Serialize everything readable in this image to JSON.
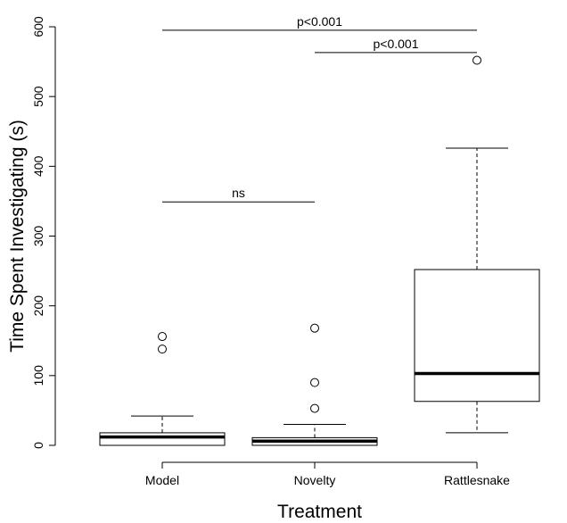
{
  "chart_data": {
    "type": "boxplot",
    "xlabel": "Treatment",
    "ylabel": "Time Spent Investigating (s)",
    "ylim": [
      -18,
      630
    ],
    "yticks": [
      0,
      100,
      200,
      300,
      400,
      500,
      600
    ],
    "ytick_labels": [
      "0",
      "100",
      "200",
      "300",
      "400",
      "500",
      "600"
    ],
    "categories": [
      "Model",
      "Novelty",
      "Rattlesnake"
    ],
    "boxes": [
      {
        "category": "Model",
        "whisker_low": 0,
        "q1": 0,
        "median": 12,
        "q3": 18,
        "whisker_high": 42,
        "outliers": [
          138,
          156
        ]
      },
      {
        "category": "Novelty",
        "whisker_low": 0,
        "q1": 0,
        "median": 6,
        "q3": 11,
        "whisker_high": 30,
        "outliers": [
          53,
          90,
          168
        ]
      },
      {
        "category": "Rattlesnake",
        "whisker_low": 18,
        "q1": 63,
        "median": 103,
        "q3": 252,
        "whisker_high": 426,
        "outliers": [
          552
        ]
      }
    ],
    "comparisons": [
      {
        "from": "Model",
        "to": "Rattlesnake",
        "y": 595,
        "label": "p<0.001"
      },
      {
        "from": "Novelty",
        "to": "Rattlesnake",
        "y": 563,
        "label": "p<0.001"
      },
      {
        "from": "Model",
        "to": "Novelty",
        "y": 349,
        "label": "ns"
      }
    ],
    "grid": false,
    "legend": "none"
  }
}
